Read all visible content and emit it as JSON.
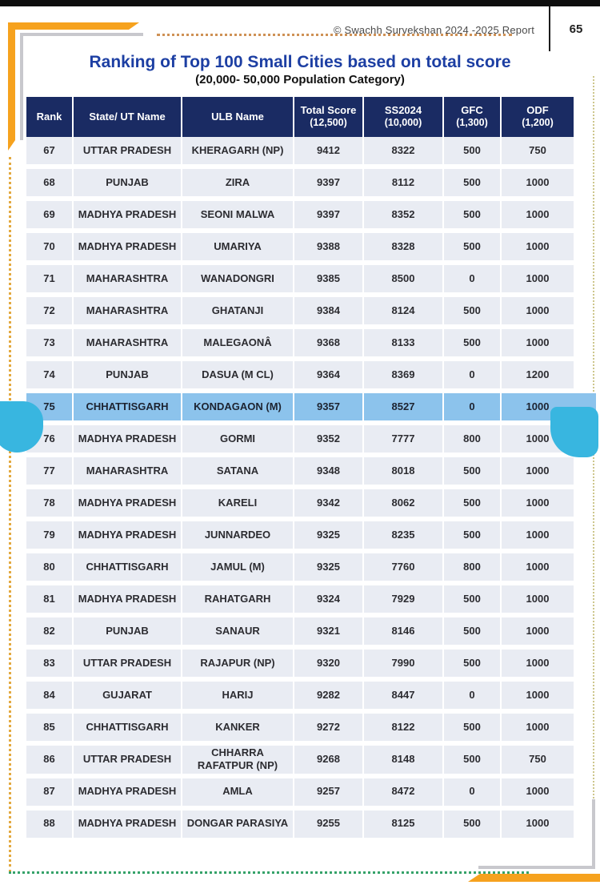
{
  "page": {
    "copyright": "© Swachh Survekshan 2024 -2025  Report",
    "page_number": "65",
    "title": "Ranking of Top 100 Small Cities based on total score",
    "subtitle": "(20,000- 50,000 Population Category)"
  },
  "colors": {
    "header_navy": "#1a2b63",
    "row_bg": "#e9ecf3",
    "highlight_row": "#8cc3ec",
    "callout_cyan": "#38b6e0",
    "accent_orange": "#f6a21e",
    "accent_gray": "#c8c8cd",
    "dots_green": "#35a269",
    "title_blue": "#1d3fa3"
  },
  "table": {
    "columns": [
      {
        "label": "Rank",
        "sub": ""
      },
      {
        "label": "State/ UT Name",
        "sub": ""
      },
      {
        "label": "ULB Name",
        "sub": ""
      },
      {
        "label": "Total Score",
        "sub": "(12,500)"
      },
      {
        "label": "SS2024",
        "sub": "(10,000)"
      },
      {
        "label": "GFC",
        "sub": "(1,300)"
      },
      {
        "label": "ODF",
        "sub": "(1,200)"
      }
    ],
    "rows": [
      {
        "rank": "67",
        "state": "UTTAR PRADESH",
        "ulb": "KHERAGARH (NP)",
        "total": "9412",
        "ss2024": "8322",
        "gfc": "500",
        "odf": "750",
        "highlight": false
      },
      {
        "rank": "68",
        "state": "PUNJAB",
        "ulb": "ZIRA",
        "total": "9397",
        "ss2024": "8112",
        "gfc": "500",
        "odf": "1000",
        "highlight": false
      },
      {
        "rank": "69",
        "state": "MADHYA PRADESH",
        "ulb": "SEONI MALWA",
        "total": "9397",
        "ss2024": "8352",
        "gfc": "500",
        "odf": "1000",
        "highlight": false
      },
      {
        "rank": "70",
        "state": "MADHYA PRADESH",
        "ulb": "UMARIYA",
        "total": "9388",
        "ss2024": "8328",
        "gfc": "500",
        "odf": "1000",
        "highlight": false
      },
      {
        "rank": "71",
        "state": "MAHARASHTRA",
        "ulb": "WANADONGRI",
        "total": "9385",
        "ss2024": "8500",
        "gfc": "0",
        "odf": "1000",
        "highlight": false
      },
      {
        "rank": "72",
        "state": "MAHARASHTRA",
        "ulb": "GHATANJI",
        "total": "9384",
        "ss2024": "8124",
        "gfc": "500",
        "odf": "1000",
        "highlight": false
      },
      {
        "rank": "73",
        "state": "MAHARASHTRA",
        "ulb": "MALEGAONÂ",
        "total": "9368",
        "ss2024": "8133",
        "gfc": "500",
        "odf": "1000",
        "highlight": false
      },
      {
        "rank": "74",
        "state": "PUNJAB",
        "ulb": "DASUA (M CL)",
        "total": "9364",
        "ss2024": "8369",
        "gfc": "0",
        "odf": "1200",
        "highlight": false
      },
      {
        "rank": "75",
        "state": "CHHATTISGARH",
        "ulb": "KONDAGAON (M)",
        "total": "9357",
        "ss2024": "8527",
        "gfc": "0",
        "odf": "1000",
        "highlight": true
      },
      {
        "rank": "76",
        "state": "MADHYA PRADESH",
        "ulb": "GORMI",
        "total": "9352",
        "ss2024": "7777",
        "gfc": "800",
        "odf": "1000",
        "highlight": false
      },
      {
        "rank": "77",
        "state": "MAHARASHTRA",
        "ulb": "SATANA",
        "total": "9348",
        "ss2024": "8018",
        "gfc": "500",
        "odf": "1000",
        "highlight": false
      },
      {
        "rank": "78",
        "state": "MADHYA PRADESH",
        "ulb": "KARELI",
        "total": "9342",
        "ss2024": "8062",
        "gfc": "500",
        "odf": "1000",
        "highlight": false
      },
      {
        "rank": "79",
        "state": "MADHYA PRADESH",
        "ulb": "JUNNARDEO",
        "total": "9325",
        "ss2024": "8235",
        "gfc": "500",
        "odf": "1000",
        "highlight": false
      },
      {
        "rank": "80",
        "state": "CHHATTISGARH",
        "ulb": "JAMUL (M)",
        "total": "9325",
        "ss2024": "7760",
        "gfc": "800",
        "odf": "1000",
        "highlight": false
      },
      {
        "rank": "81",
        "state": "MADHYA PRADESH",
        "ulb": "RAHATGARH",
        "total": "9324",
        "ss2024": "7929",
        "gfc": "500",
        "odf": "1000",
        "highlight": false
      },
      {
        "rank": "82",
        "state": "PUNJAB",
        "ulb": "SANAUR",
        "total": "9321",
        "ss2024": "8146",
        "gfc": "500",
        "odf": "1000",
        "highlight": false
      },
      {
        "rank": "83",
        "state": "UTTAR PRADESH",
        "ulb": "RAJAPUR (NP)",
        "total": "9320",
        "ss2024": "7990",
        "gfc": "500",
        "odf": "1000",
        "highlight": false
      },
      {
        "rank": "84",
        "state": "GUJARAT",
        "ulb": "HARIJ",
        "total": "9282",
        "ss2024": "8447",
        "gfc": "0",
        "odf": "1000",
        "highlight": false
      },
      {
        "rank": "85",
        "state": "CHHATTISGARH",
        "ulb": "KANKER",
        "total": "9272",
        "ss2024": "8122",
        "gfc": "500",
        "odf": "1000",
        "highlight": false
      },
      {
        "rank": "86",
        "state": "UTTAR PRADESH",
        "ulb": "CHHARRA RAFATPUR (NP)",
        "total": "9268",
        "ss2024": "8148",
        "gfc": "500",
        "odf": "750",
        "highlight": false
      },
      {
        "rank": "87",
        "state": "MADHYA PRADESH",
        "ulb": "AMLA",
        "total": "9257",
        "ss2024": "8472",
        "gfc": "0",
        "odf": "1000",
        "highlight": false
      },
      {
        "rank": "88",
        "state": "MADHYA PRADESH",
        "ulb": "DONGAR PARASIYA",
        "total": "9255",
        "ss2024": "8125",
        "gfc": "500",
        "odf": "1000",
        "highlight": false
      }
    ]
  }
}
